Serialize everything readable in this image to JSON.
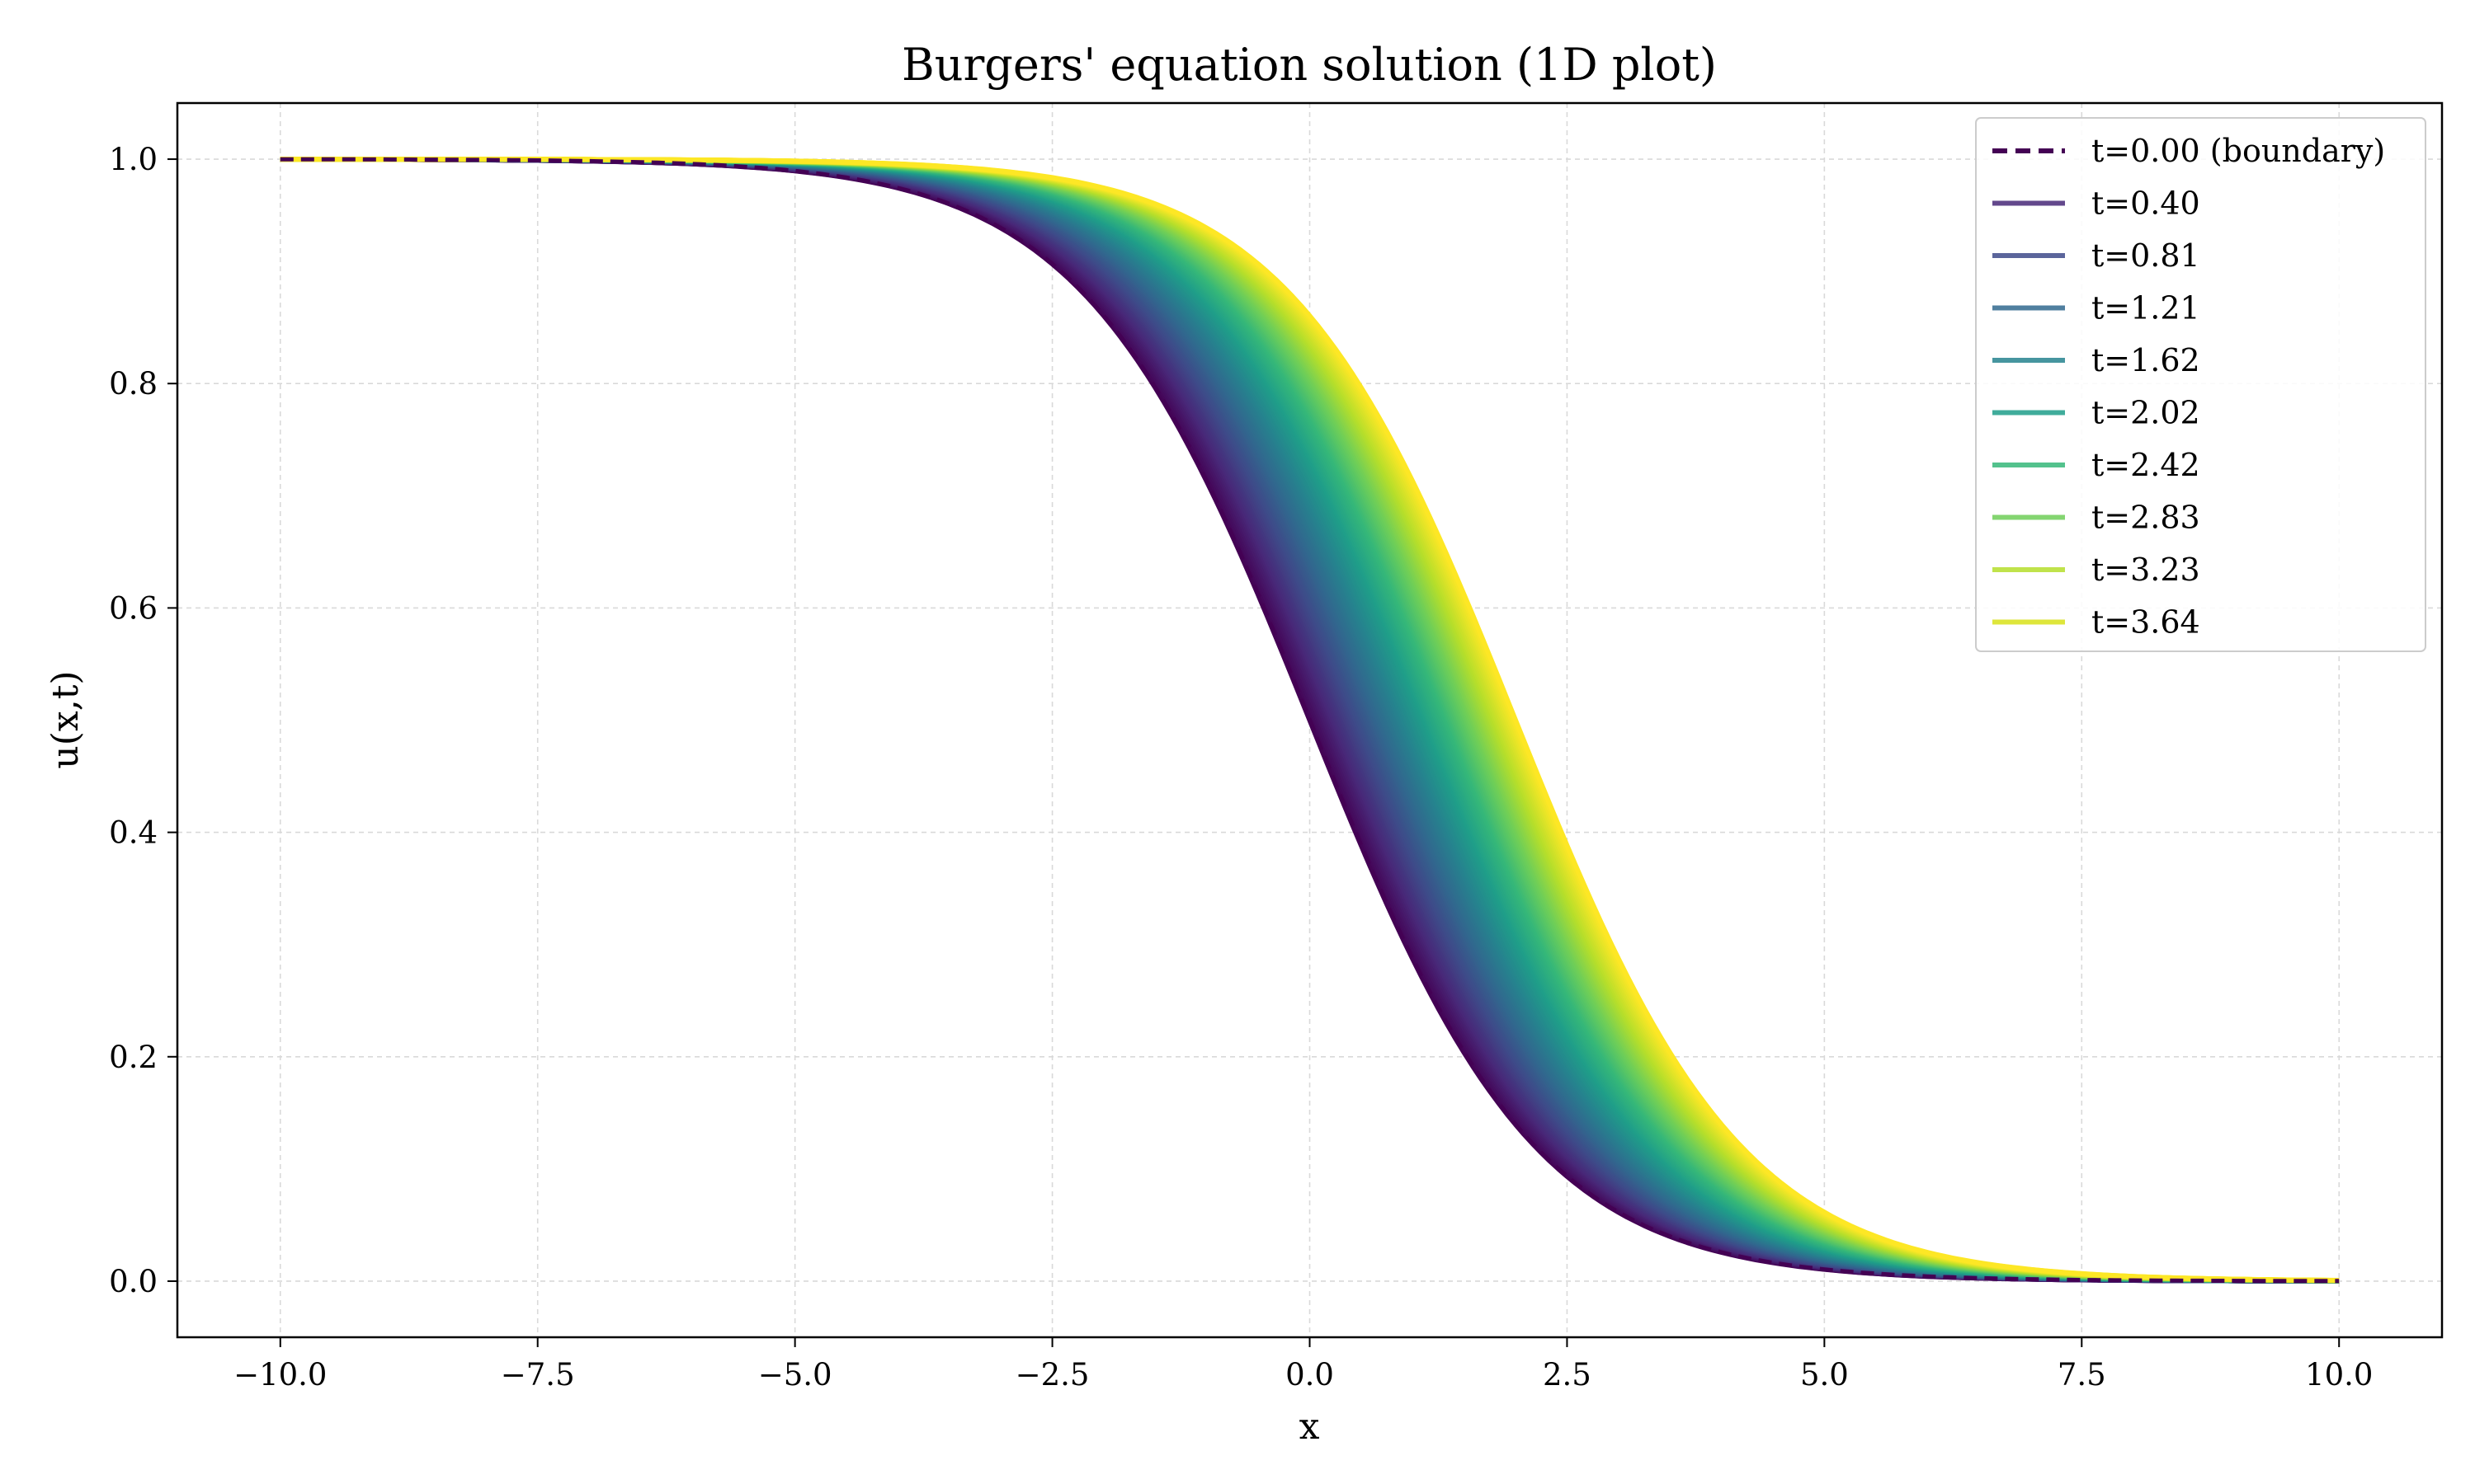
{
  "chart_data": {
    "type": "line",
    "title": "Burgers' equation solution (1D plot)",
    "xlabel": "x",
    "ylabel": "u(x,t)",
    "xlim": [
      -11.0,
      11.0
    ],
    "ylim": [
      -0.05,
      1.05
    ],
    "xticks": [
      -10.0,
      -7.5,
      -5.0,
      -2.5,
      0.0,
      2.5,
      5.0,
      7.5,
      10.0
    ],
    "xtick_labels": [
      "−10.0",
      "−7.5",
      "−5.0",
      "−2.5",
      "0.0",
      "2.5",
      "5.0",
      "7.5",
      "10.0"
    ],
    "yticks": [
      0.0,
      0.2,
      0.4,
      0.6,
      0.8,
      1.0
    ],
    "ytick_labels": [
      "0.0",
      "0.2",
      "0.4",
      "0.6",
      "0.8",
      "1.0"
    ],
    "grid": true,
    "legend_position": "top-right",
    "x_range": [
      -10.0,
      10.0
    ],
    "profile": "u = 1 / (1 + exp((x - 0.5*t) / 1.1))",
    "series": [
      {
        "name": "t=0.00 (boundary)",
        "t": 0.0,
        "color": "#440154",
        "style": "dashed"
      },
      {
        "name": "t=0.40",
        "t": 0.4,
        "color": "#482878",
        "style": "solid"
      },
      {
        "name": "t=0.81",
        "t": 0.81,
        "color": "#3e4a89",
        "style": "solid"
      },
      {
        "name": "t=1.21",
        "t": 1.21,
        "color": "#31688e",
        "style": "solid"
      },
      {
        "name": "t=1.62",
        "t": 1.62,
        "color": "#26828e",
        "style": "solid"
      },
      {
        "name": "t=2.02",
        "t": 2.02,
        "color": "#1f9e89",
        "style": "solid"
      },
      {
        "name": "t=2.42",
        "t": 2.42,
        "color": "#35b779",
        "style": "solid"
      },
      {
        "name": "t=2.83",
        "t": 2.83,
        "color": "#6ece58",
        "style": "solid"
      },
      {
        "name": "t=3.23",
        "t": 3.23,
        "color": "#b5de2b",
        "style": "solid"
      },
      {
        "name": "t=3.64",
        "t": 3.64,
        "color": "#d8e219",
        "style": "solid"
      }
    ],
    "dense_curves": {
      "count": 100,
      "t_range": [
        0.0,
        4.0
      ],
      "colormap": [
        "#440154",
        "#482878",
        "#3e4a89",
        "#31688e",
        "#26828e",
        "#1f9e89",
        "#35b779",
        "#6ece58",
        "#b5de2b",
        "#fde725"
      ]
    }
  }
}
